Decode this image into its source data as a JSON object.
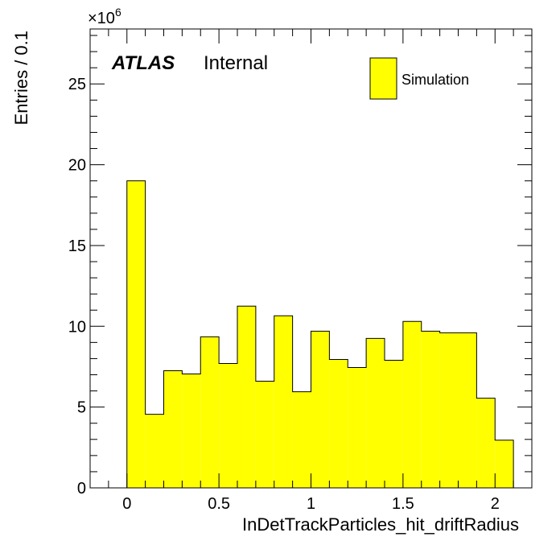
{
  "chart_data": {
    "type": "bar",
    "histogram": true,
    "bin_width": 0.1,
    "x_bins_low": [
      0.0,
      0.1,
      0.2,
      0.3,
      0.4,
      0.5,
      0.6,
      0.7,
      0.8,
      0.9,
      1.0,
      1.1,
      1.2,
      1.3,
      1.4,
      1.5,
      1.6,
      1.7,
      1.8,
      1.9,
      2.0
    ],
    "values": [
      19.0,
      4.55,
      7.25,
      7.05,
      9.35,
      7.7,
      11.25,
      6.6,
      10.65,
      5.95,
      9.7,
      7.95,
      7.45,
      9.25,
      7.9,
      10.3,
      9.7,
      9.6,
      9.6,
      5.55,
      2.95
    ],
    "xlabel": "InDetTrackParticles_hit_driftRadius",
    "ylabel": "Entries / 0.1",
    "xlim": [
      -0.2,
      2.2
    ],
    "ylim": [
      0,
      28.4
    ],
    "x_major_ticks": [
      0,
      0.5,
      1,
      1.5,
      2
    ],
    "x_tick_labels": [
      "0",
      "0.5",
      "1",
      "1.5",
      "2"
    ],
    "y_major_ticks": [
      0,
      5,
      10,
      15,
      20,
      25
    ],
    "y_tick_labels": [
      "0",
      "5",
      "10",
      "15",
      "20",
      "25"
    ],
    "y_multiplier_base": "×10",
    "y_multiplier_exp": "6",
    "fill_color": "#ffff00",
    "line_color": "#000000",
    "grid": false,
    "legend": {
      "position": "top-right",
      "entries": [
        "Simulation"
      ]
    },
    "annotations": {
      "atlas": "ATLAS",
      "label": "Internal"
    }
  }
}
